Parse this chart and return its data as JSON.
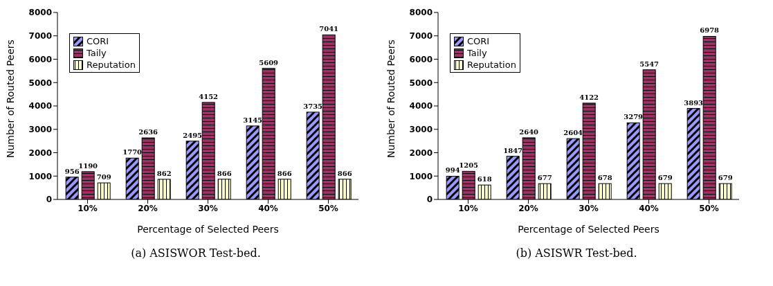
{
  "chart_data": [
    {
      "type": "bar",
      "categories": [
        "10%",
        "20%",
        "30%",
        "40%",
        "50%"
      ],
      "xlabel": "Percentage of Selected Peers",
      "ylabel": "Number of Routed Peers",
      "ylim": [
        0,
        8000
      ],
      "yticks": [
        0,
        1000,
        2000,
        3000,
        4000,
        5000,
        6000,
        7000,
        8000
      ],
      "legend": "top left",
      "data_labels": true,
      "annotations": [
        "(a) ASISWOR Test-bed."
      ],
      "series": [
        {
          "name": "CORI",
          "color": "#9999ff",
          "values": [
            956,
            1770,
            2495,
            3145,
            3735
          ]
        },
        {
          "name": "Taily",
          "color": "#993366",
          "values": [
            1190,
            2636,
            4152,
            5609,
            7041
          ]
        },
        {
          "name": "Reputation",
          "color": "#ffffcc",
          "values": [
            709,
            862,
            866,
            866,
            866
          ]
        }
      ]
    },
    {
      "type": "bar",
      "categories": [
        "10%",
        "20%",
        "30%",
        "40%",
        "50%"
      ],
      "xlabel": "Percentage of Selected Peers",
      "ylabel": "Number of Routed Peers",
      "ylim": [
        0,
        8000
      ],
      "yticks": [
        0,
        1000,
        2000,
        3000,
        4000,
        5000,
        6000,
        7000,
        8000
      ],
      "legend": "top left",
      "data_labels": true,
      "annotations": [
        "(b) ASISWR Test-bed."
      ],
      "series": [
        {
          "name": "CORI",
          "color": "#9999ff",
          "values": [
            994,
            1847,
            2604,
            3279,
            3893
          ]
        },
        {
          "name": "Taily",
          "color": "#993366",
          "values": [
            1205,
            2640,
            4122,
            5547,
            6978
          ]
        },
        {
          "name": "Reputation",
          "color": "#ffffcc",
          "values": [
            618,
            677,
            678,
            679,
            679
          ]
        }
      ]
    }
  ]
}
